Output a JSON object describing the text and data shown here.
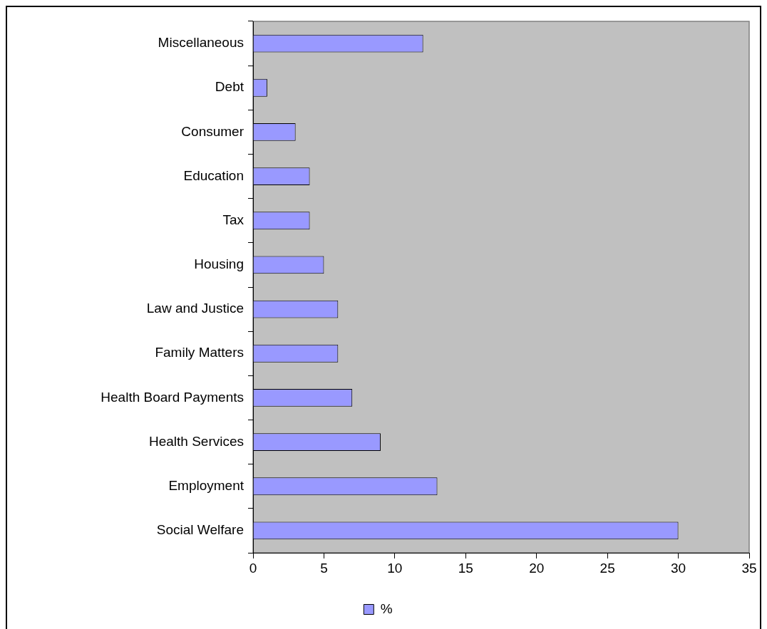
{
  "chart_data": {
    "type": "bar",
    "orientation": "horizontal",
    "categories": [
      "Miscellaneous",
      "Debt",
      "Consumer",
      "Education",
      "Tax",
      "Housing",
      "Law and Justice",
      "Family Matters",
      "Health Board Payments",
      "Health Services",
      "Employment",
      "Social Welfare"
    ],
    "series": [
      {
        "name": "%",
        "color": "#9999ff",
        "values": [
          12,
          1,
          3,
          4,
          4,
          5,
          6,
          6,
          7,
          9,
          13,
          30
        ]
      }
    ],
    "xlim": [
      0,
      35
    ],
    "xticks": [
      0,
      5,
      10,
      15,
      20,
      25,
      30,
      35
    ],
    "grid": false,
    "legend": "bottom"
  }
}
